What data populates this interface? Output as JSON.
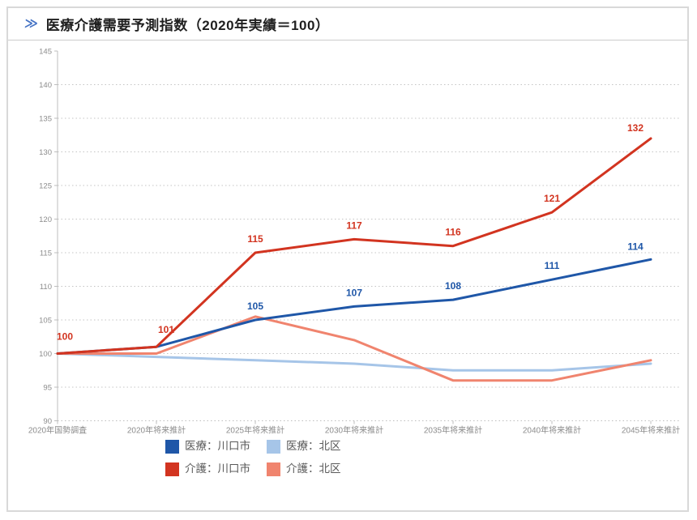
{
  "header": {
    "icon_glyph": "≫",
    "title": "医療介護需要予測指数（2020年実績＝100）"
  },
  "colors": {
    "accent_blue": "#4472c4",
    "panel_border": "#d9d9d9",
    "separator": "#cccccc",
    "grid": "#c4c4c4",
    "axis": "#bdbdbd",
    "axis_text": "#8c8c8c",
    "legend_text": "#595959",
    "title_text": "#1f1f1f"
  },
  "chart_data": {
    "type": "line",
    "title": "医療介護需要予測指数（2020年実績＝100）",
    "categories": [
      "2020年国勢調査",
      "2020年将来推計",
      "2025年将来推計",
      "2030年将来推計",
      "2035年将来推計",
      "2040年将来推計",
      "2045年将来推計"
    ],
    "series": [
      {
        "name": "医療：川口市",
        "color": "#1f57a8",
        "values": [
          100,
          101,
          105,
          107,
          108,
          111,
          114
        ],
        "labels": [
          null,
          null,
          "105",
          "107",
          "108",
          "111",
          "114"
        ]
      },
      {
        "name": "医療：北区",
        "color": "#a6c5e8",
        "values": [
          100,
          99.5,
          99,
          98.5,
          97.5,
          97.5,
          98.5
        ],
        "labels": null
      },
      {
        "name": "介護：川口市",
        "color": "#d23420",
        "values": [
          100,
          101,
          115,
          117,
          116,
          121,
          132
        ],
        "labels": [
          "100",
          "101",
          "115",
          "117",
          "116",
          "121",
          "132"
        ]
      },
      {
        "name": "介護：北区",
        "color": "#f0846e",
        "values": [
          100,
          100,
          105.5,
          102,
          96,
          96,
          99
        ],
        "labels": null
      }
    ],
    "xlabel": "",
    "ylabel": "",
    "ylim": [
      90,
      145
    ],
    "yticks": [
      90,
      95,
      100,
      105,
      110,
      115,
      120,
      125,
      130,
      135,
      140,
      145
    ],
    "grid": "horizontal-dotted",
    "legend_position": "bottom"
  }
}
